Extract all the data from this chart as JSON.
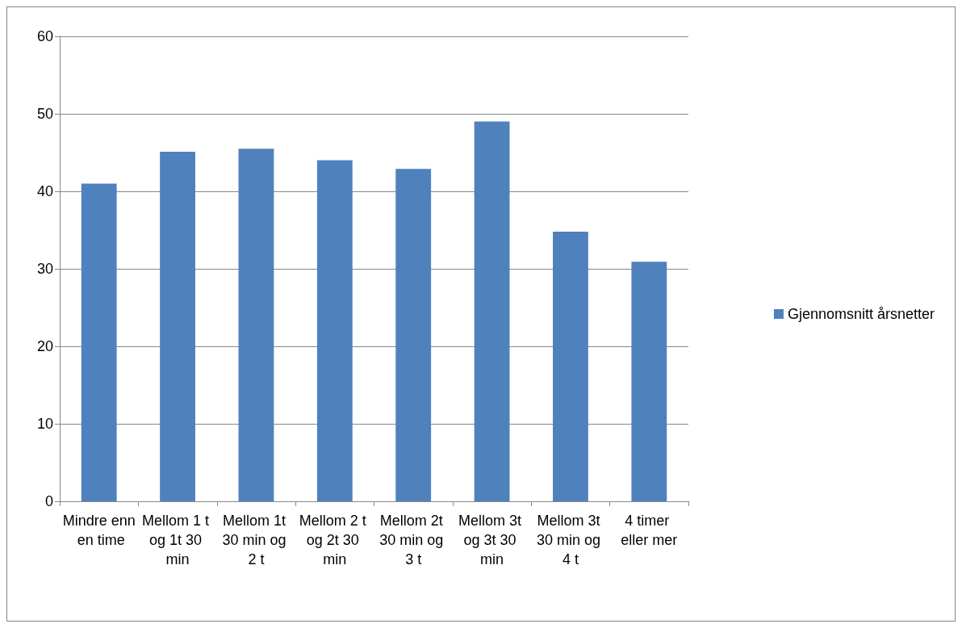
{
  "chart_data": {
    "type": "bar",
    "categories": [
      "Mindre enn en time",
      "Mellom 1 t og 1t 30 min",
      "Mellom 1t 30 min og 2 t",
      "Mellom 2 t og 2t 30 min",
      "Mellom 2t 30 min og 3 t",
      "Mellom 3t og 3t 30 min",
      "Mellom 3t 30 min og 4 t",
      "4 timer eller mer"
    ],
    "series": [
      {
        "name": "Gjennomsnitt årsnetter",
        "color": "#4f81bd",
        "values": [
          41.0,
          45.1,
          45.5,
          44.0,
          42.9,
          49.0,
          34.8,
          30.9
        ]
      }
    ],
    "ylim": [
      0,
      60
    ],
    "yticks": [
      0,
      10,
      20,
      30,
      40,
      50,
      60
    ],
    "grid": "y",
    "legend": "right"
  }
}
